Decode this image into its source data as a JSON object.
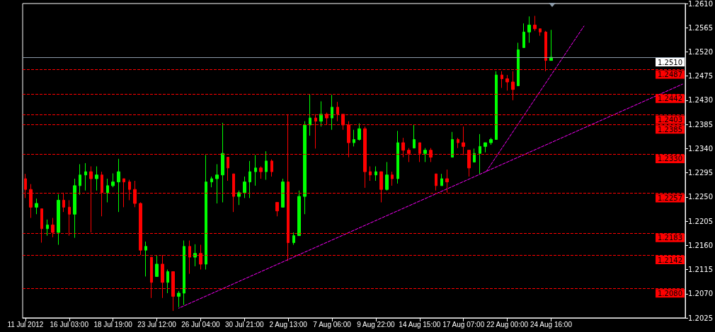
{
  "chart_data": {
    "type": "candlestick",
    "categories": [
      "11 Jul 2012",
      null,
      null,
      null,
      null,
      null,
      null,
      null,
      "16 Jul 03:00",
      null,
      null,
      null,
      null,
      null,
      null,
      null,
      "18 Jul 19:00",
      null,
      null,
      null,
      null,
      null,
      null,
      null,
      "23 Jul 12:00",
      null,
      null,
      null,
      null,
      null,
      null,
      null,
      "26 Jul 04:00",
      null,
      null,
      null,
      null,
      null,
      null,
      null,
      "30 Jul 21:00",
      null,
      null,
      null,
      null,
      null,
      null,
      null,
      "2 Aug 13:00",
      null,
      null,
      null,
      null,
      null,
      null,
      null,
      "7 Aug 06:00",
      null,
      null,
      null,
      null,
      null,
      null,
      null,
      "9 Aug 22:00",
      null,
      null,
      null,
      null,
      null,
      null,
      null,
      "14 Aug 15:00",
      null,
      null,
      null,
      null,
      null,
      null,
      null,
      "17 Aug 07:00",
      null,
      null,
      null,
      null,
      null,
      null,
      null,
      "22 Aug 00:00",
      null,
      null,
      null,
      null,
      null,
      null,
      null,
      "24 Aug 16:00",
      null,
      null,
      null,
      null,
      null,
      null,
      null,
      null,
      null,
      null,
      null,
      null,
      null,
      null,
      null,
      null,
      null,
      null,
      null,
      null,
      null,
      null,
      null,
      null
    ],
    "ohlc": [
      [
        1.2284,
        1.2293,
        1.2248,
        1.2264
      ],
      [
        1.2264,
        1.2274,
        1.2211,
        1.2231
      ],
      [
        1.2231,
        1.2247,
        1.2218,
        1.2238
      ],
      [
        1.2228,
        1.2228,
        1.2165,
        1.2191
      ],
      [
        1.2191,
        1.2208,
        1.2178,
        1.2198
      ],
      [
        1.2198,
        1.2211,
        1.2175,
        1.2184
      ],
      [
        1.2184,
        1.2255,
        1.2161,
        1.2244
      ],
      [
        1.2244,
        1.2258,
        1.2222,
        1.2231
      ],
      [
        1.2231,
        1.2244,
        1.2178,
        1.2218
      ],
      [
        1.2218,
        1.2284,
        1.2174,
        1.2271
      ],
      [
        1.2271,
        1.2311,
        1.2254,
        1.2291
      ],
      [
        1.2291,
        1.2313,
        1.2262,
        1.2297
      ],
      [
        1.2297,
        1.2307,
        1.2184,
        1.2284
      ],
      [
        1.2284,
        1.2307,
        1.2262,
        1.2291
      ],
      [
        1.2291,
        1.2297,
        1.2214,
        1.2258
      ],
      [
        1.2258,
        1.2284,
        1.224,
        1.2271
      ],
      [
        1.2271,
        1.2294,
        1.2268,
        1.2278
      ],
      [
        1.2278,
        1.2321,
        1.2222,
        1.2297
      ],
      [
        1.2284,
        1.2284,
        1.2231,
        1.2278
      ],
      [
        1.2278,
        1.2282,
        1.2244,
        1.2264
      ],
      [
        1.2264,
        1.228,
        1.2231,
        1.2238
      ],
      [
        1.2238,
        1.224,
        1.2142,
        1.2151
      ],
      [
        1.2151,
        1.2167,
        1.2102,
        1.2158
      ],
      [
        1.2138,
        1.2138,
        1.2062,
        1.2091
      ],
      [
        1.2102,
        1.2141,
        1.2102,
        1.2125
      ],
      [
        1.2125,
        1.2142,
        1.2062,
        1.2091
      ],
      [
        1.2091,
        1.2115,
        1.2071,
        1.2111
      ],
      [
        1.2111,
        1.2111,
        1.2038,
        1.2065
      ],
      [
        1.2065,
        1.2075,
        1.2045,
        1.2071
      ],
      [
        1.2071,
        1.2169,
        1.2049,
        1.2158
      ],
      [
        1.2158,
        1.2169,
        1.2107,
        1.2138
      ],
      [
        1.2138,
        1.2162,
        1.2121,
        1.2145
      ],
      [
        1.2145,
        1.2161,
        1.2115,
        1.2125
      ],
      [
        1.2125,
        1.2328,
        1.2115,
        1.2278
      ],
      [
        1.2278,
        1.2288,
        1.2268,
        1.2284
      ],
      [
        1.2284,
        1.2311,
        1.2238,
        1.2291
      ],
      [
        1.2291,
        1.2388,
        1.224,
        1.2331
      ],
      [
        1.2324,
        1.2324,
        1.228,
        1.2304
      ],
      [
        1.2293,
        1.2293,
        1.2222,
        1.2251
      ],
      [
        1.2251,
        1.2262,
        1.2235,
        1.2258
      ],
      [
        1.2258,
        1.2288,
        1.2248,
        1.2278
      ],
      [
        1.2278,
        1.2317,
        1.2248,
        1.2297
      ],
      [
        1.2297,
        1.2328,
        1.2271,
        1.2304
      ],
      [
        1.2304,
        1.2307,
        1.2284,
        1.2297
      ],
      [
        1.2297,
        1.2335,
        1.2282,
        1.2317
      ],
      [
        1.2317,
        1.232,
        1.2288,
        1.2297
      ],
      [
        1.224,
        1.224,
        1.2214,
        1.2224
      ],
      [
        1.2231,
        1.2284,
        1.2231,
        1.2278
      ],
      [
        1.2278,
        1.2404,
        1.2131,
        1.2165
      ],
      [
        1.2165,
        1.2184,
        1.2161,
        1.2178
      ],
      [
        1.2178,
        1.2262,
        1.2178,
        1.2251
      ],
      [
        1.2251,
        1.2391,
        1.2218,
        1.2384
      ],
      [
        1.2384,
        1.2441,
        1.2364,
        1.2397
      ],
      [
        1.2397,
        1.2404,
        1.234,
        1.2391
      ],
      [
        1.2391,
        1.2428,
        1.2381,
        1.2404
      ],
      [
        1.2404,
        1.2407,
        1.2384,
        1.2397
      ],
      [
        1.2397,
        1.244,
        1.2375,
        1.2417
      ],
      [
        1.2417,
        1.2427,
        1.2391,
        1.2404
      ],
      [
        1.2404,
        1.2404,
        1.2375,
        1.2384
      ],
      [
        1.2384,
        1.2391,
        1.2324,
        1.2351
      ],
      [
        1.2351,
        1.2375,
        1.2344,
        1.2357
      ],
      [
        1.2357,
        1.2387,
        1.2355,
        1.2377
      ],
      [
        1.2377,
        1.2381,
        1.2267,
        1.2297
      ],
      [
        1.2297,
        1.2307,
        1.228,
        1.2291
      ],
      [
        1.2291,
        1.2307,
        1.228,
        1.2297
      ],
      [
        1.2297,
        1.2297,
        1.224,
        1.2264
      ],
      [
        1.2264,
        1.2315,
        1.2262,
        1.2291
      ],
      [
        1.2291,
        1.2297,
        1.2271,
        1.2284
      ],
      [
        1.2284,
        1.2373,
        1.2275,
        1.2351
      ],
      [
        1.2351,
        1.236,
        1.2324,
        1.2337
      ],
      [
        1.2337,
        1.2341,
        1.2315,
        1.2331
      ],
      [
        1.2341,
        1.2384,
        1.2341,
        1.2357
      ],
      [
        1.2351,
        1.2351,
        1.2315,
        1.2331
      ],
      [
        1.2331,
        1.2341,
        1.2315,
        1.2337
      ],
      [
        1.2337,
        1.2341,
        1.2315,
        1.2324
      ],
      [
        1.2293,
        1.2293,
        1.2262,
        1.2271
      ],
      [
        1.2271,
        1.2293,
        1.2271,
        1.2284
      ],
      [
        1.2284,
        1.2301,
        1.2258,
        1.2278
      ],
      [
        1.2324,
        1.2371,
        1.2324,
        1.2357
      ],
      [
        1.2357,
        1.236,
        1.2341,
        1.2351
      ],
      [
        1.2351,
        1.2381,
        1.2328,
        1.2344
      ],
      [
        1.2337,
        1.2337,
        1.2288,
        1.2304
      ],
      [
        1.2315,
        1.234,
        1.2315,
        1.2331
      ],
      [
        1.2331,
        1.2367,
        1.2293,
        1.2344
      ],
      [
        1.2344,
        1.2351,
        1.2333,
        1.2351
      ],
      [
        1.2351,
        1.236,
        1.2347,
        1.2357
      ],
      [
        1.2357,
        1.2484,
        1.2357,
        1.2477
      ],
      [
        1.2477,
        1.2484,
        1.2453,
        1.247
      ],
      [
        1.247,
        1.2477,
        1.2448,
        1.2464
      ],
      [
        1.2464,
        1.2484,
        1.243,
        1.245
      ],
      [
        1.2457,
        1.2537,
        1.2457,
        1.2524
      ],
      [
        1.2528,
        1.2573,
        1.2528,
        1.2557
      ],
      [
        1.2557,
        1.2586,
        1.2537,
        1.257
      ],
      [
        1.257,
        1.2587,
        1.2559,
        1.2563
      ],
      [
        1.2563,
        1.2563,
        1.255,
        1.2557
      ],
      [
        1.2557,
        1.2559,
        1.2484,
        1.2504
      ],
      [
        1.2504,
        1.2561,
        1.2504,
        1.251
      ],
      null,
      null,
      null,
      null,
      null,
      null,
      null,
      null,
      null,
      null,
      null,
      null,
      null,
      null,
      null,
      null,
      null,
      null,
      null,
      null,
      null,
      null,
      null,
      null
    ],
    "colors": [
      "#ff0000",
      "#ff0000",
      "#00ff00",
      "#ff0000",
      "#00ff00",
      "#ff0000",
      "#00ff00",
      "#ff0000",
      "#ff0000",
      "#00ff00",
      "#00ff00",
      "#00ff00",
      "#ff0000",
      "#00ff00",
      "#ff0000",
      "#00ff00",
      "#00ff00",
      "#00ff00",
      "#ff0000",
      "#ff0000",
      "#ff0000",
      "#ff0000",
      "#00ff00",
      "#ff0000",
      "#00ff00",
      "#ff0000",
      "#00ff00",
      "#ff0000",
      "#00ff00",
      "#00ff00",
      "#ff0000",
      "#00ff00",
      "#ff0000",
      "#00ff00",
      "#00ff00",
      "#00ff00",
      "#00ff00",
      "#ff0000",
      "#ff0000",
      "#00ff00",
      "#00ff00",
      "#00ff00",
      "#00ff00",
      "#ff0000",
      "#00ff00",
      "#ff0000",
      "#ff0000",
      "#00ff00",
      "#ff0000",
      "#00ff00",
      "#00ff00",
      "#00ff00",
      "#00ff00",
      "#ff0000",
      "#00ff00",
      "#ff0000",
      "#00ff00",
      "#ff0000",
      "#ff0000",
      "#ff0000",
      "#00ff00",
      "#00ff00",
      "#ff0000",
      "#ff0000",
      "#00ff00",
      "#ff0000",
      "#00ff00",
      "#ff0000",
      "#00ff00",
      "#ff0000",
      "#ff0000",
      "#00ff00",
      "#ff0000",
      "#00ff00",
      "#ff0000",
      "#ff0000",
      "#00ff00",
      "#ff0000",
      "#00ff00",
      "#ff0000",
      "#ff0000",
      "#ff0000",
      "#00ff00",
      "#00ff00",
      "#00ff00",
      "#00ff00",
      "#00ff00",
      "#ff0000",
      "#ff0000",
      "#ff0000",
      "#00ff00",
      "#00ff00",
      "#00ff00",
      "#ff0000",
      "#ff0000",
      "#ff0000",
      "#00ff00",
      null,
      null,
      null,
      null,
      null,
      null,
      null,
      null,
      null,
      null,
      null,
      null,
      null,
      null,
      null,
      null,
      null,
      null,
      null,
      null,
      null,
      null,
      null,
      null
    ],
    "series": [
      {
        "type": "line",
        "color": "#ff00ff",
        "line_style": "dashed",
        "marker": "none",
        "values": [
          null,
          null,
          null,
          null,
          null,
          null,
          null,
          null,
          null,
          null,
          null,
          null,
          null,
          null,
          null,
          null,
          null,
          null,
          null,
          null,
          null,
          null,
          null,
          null,
          null,
          null,
          null,
          null,
          1.2043,
          null,
          null,
          null,
          null,
          null,
          null,
          null,
          null,
          null,
          null,
          null,
          null,
          null,
          null,
          null,
          null,
          null,
          null,
          null,
          null,
          null,
          null,
          null,
          null,
          null,
          null,
          null,
          null,
          null,
          null,
          null,
          null,
          null,
          null,
          null,
          null,
          null,
          null,
          null,
          null,
          null,
          null,
          null,
          null,
          null,
          null,
          null,
          null,
          null,
          null,
          null,
          null,
          null,
          null,
          null,
          null,
          null,
          null,
          null,
          null,
          null,
          null,
          null,
          null,
          null,
          null,
          null,
          null,
          null,
          null,
          null,
          null,
          null,
          null,
          null,
          null,
          null,
          null,
          null,
          null,
          null,
          null,
          null,
          null,
          null,
          null,
          null,
          null,
          null,
          null,
          null,
          1.246
        ]
      },
      {
        "type": "line",
        "color": "#ff00ff",
        "line_style": "dashed",
        "marker": "none",
        "values": [
          null,
          null,
          null,
          null,
          null,
          null,
          null,
          null,
          null,
          null,
          null,
          null,
          null,
          null,
          null,
          null,
          null,
          null,
          null,
          null,
          null,
          null,
          null,
          null,
          null,
          null,
          null,
          null,
          null,
          null,
          null,
          null,
          null,
          null,
          null,
          null,
          null,
          null,
          null,
          null,
          null,
          null,
          null,
          null,
          null,
          null,
          null,
          null,
          null,
          null,
          null,
          null,
          null,
          null,
          null,
          null,
          null,
          null,
          null,
          null,
          null,
          null,
          null,
          null,
          null,
          null,
          null,
          null,
          null,
          null,
          null,
          null,
          null,
          null,
          null,
          null,
          null,
          null,
          null,
          null,
          null,
          null,
          null,
          null,
          1.2295,
          null,
          null,
          null,
          null,
          null,
          null,
          null,
          null,
          null,
          null,
          null,
          null,
          null,
          null,
          null,
          null,
          null,
          1.2568,
          null,
          null,
          null,
          null,
          null,
          null,
          null,
          null,
          null,
          null,
          null,
          null,
          null,
          null,
          null,
          null,
          null,
          null
        ]
      }
    ],
    "ylim": [
      1.2025,
      1.261
    ],
    "yticks": [
      1.2025,
      {
        "value": 1.207,
        "label": "1.2070"
      },
      1.2115,
      {
        "value": 1.216,
        "label": "1.2160"
      },
      1.2205,
      {
        "value": 1.225,
        "label": "1.2250"
      },
      1.2295,
      {
        "value": 1.234,
        "label": "1.2340"
      },
      1.2385,
      {
        "value": 1.243,
        "label": "1.2430"
      },
      1.2475,
      {
        "value": 1.252,
        "label": "1.2520"
      },
      1.2565,
      {
        "value": 1.261,
        "label": "1.2610"
      }
    ],
    "ref_lines": [
      {
        "axis": "y",
        "value": 1.251,
        "label": "1.2510",
        "color": "#8c9aa8",
        "line_style": "solid"
      },
      {
        "axis": "y",
        "value": 1.2487,
        "label": "1.2487",
        "color": "#ff0000",
        "line_style": "dashed"
      },
      {
        "axis": "y",
        "value": 1.2442,
        "label": "1.2442",
        "color": "#ff0000",
        "line_style": "dashed"
      },
      {
        "axis": "y",
        "value": 1.2403,
        "label": "1.2403",
        "color": "#ff0000",
        "line_style": "dashed"
      },
      {
        "axis": "y",
        "value": 1.2385,
        "label": "1.2385",
        "color": "#ff0000",
        "line_style": "dashed"
      },
      {
        "axis": "y",
        "value": 1.233,
        "label": "1.2330",
        "color": "#ff0000",
        "line_style": "dashed"
      },
      {
        "axis": "y",
        "value": 1.2257,
        "label": "1.2257",
        "color": "#ff0000",
        "line_style": "dashed"
      },
      {
        "axis": "y",
        "value": 1.2183,
        "label": "1.2183",
        "color": "#ff0000",
        "line_style": "dashed"
      },
      {
        "axis": "y",
        "value": 1.2142,
        "label": "1.2142",
        "color": "#ff0000",
        "line_style": "dashed"
      },
      {
        "axis": "y",
        "value": 1.208,
        "label": "1.2080",
        "color": "#ff0000",
        "line_style": "dashed"
      }
    ]
  }
}
